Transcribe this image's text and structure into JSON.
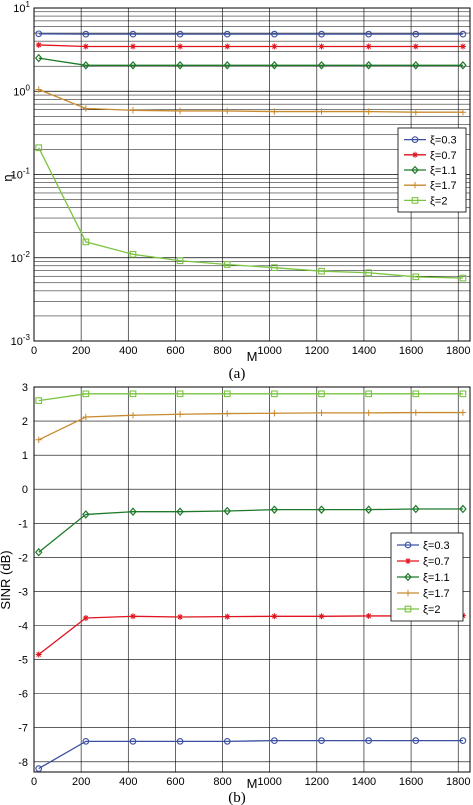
{
  "colors": {
    "xi_0_3": "#3a4fa0",
    "xi_0_7": "#e0141e",
    "xi_1_1": "#1e7a2a",
    "xi_1_7": "#c88a2e",
    "xi_2": "#7bc441"
  },
  "chart_data": [
    {
      "type": "line",
      "panel_caption": "(a)",
      "xlabel": "M",
      "ylabel": "η",
      "yscale": "log",
      "xlim": [
        0,
        1850
      ],
      "ylim": [
        0.001,
        10
      ],
      "xticks": [
        0,
        200,
        400,
        600,
        800,
        1000,
        1200,
        1400,
        1600,
        1800
      ],
      "yticks": [
        {
          "value": 0.001,
          "base": "10",
          "exp": "-3"
        },
        {
          "value": 0.01,
          "base": "10",
          "exp": "-2"
        },
        {
          "value": 0.1,
          "base": "10",
          "exp": "-1"
        },
        {
          "value": 1,
          "base": "10",
          "exp": "0"
        },
        {
          "value": 10,
          "base": "10",
          "exp": "1"
        }
      ],
      "grid": true,
      "legend_position": "right",
      "x": [
        20,
        220,
        420,
        620,
        820,
        1020,
        1220,
        1420,
        1620,
        1820
      ],
      "series": [
        {
          "name": "ξ=0.3",
          "color": "#3a4fa0",
          "marker": "circle",
          "values": [
            4.9,
            4.85,
            4.85,
            4.85,
            4.85,
            4.85,
            4.85,
            4.85,
            4.85,
            4.85
          ]
        },
        {
          "name": "ξ=0.7",
          "color": "#e0141e",
          "marker": "star",
          "values": [
            3.6,
            3.45,
            3.45,
            3.45,
            3.45,
            3.45,
            3.45,
            3.45,
            3.45,
            3.45
          ]
        },
        {
          "name": "ξ=1.1",
          "color": "#1e7a2a",
          "marker": "diamond",
          "values": [
            2.5,
            2.05,
            2.05,
            2.05,
            2.05,
            2.05,
            2.05,
            2.05,
            2.05,
            2.05
          ]
        },
        {
          "name": "ξ=1.7",
          "color": "#c88a2e",
          "marker": "plus",
          "values": [
            1.05,
            0.62,
            0.59,
            0.58,
            0.58,
            0.57,
            0.57,
            0.57,
            0.56,
            0.56
          ]
        },
        {
          "name": "ξ=2",
          "color": "#7bc441",
          "marker": "square",
          "values": [
            0.21,
            0.0155,
            0.011,
            0.0092,
            0.0083,
            0.0076,
            0.0069,
            0.0066,
            0.0059,
            0.0057
          ]
        }
      ]
    },
    {
      "type": "line",
      "panel_caption": "(b)",
      "xlabel": "M",
      "ylabel": "SINR (dB)",
      "yscale": "linear",
      "xlim": [
        0,
        1850
      ],
      "ylim": [
        -8.3,
        3
      ],
      "xticks": [
        0,
        200,
        400,
        600,
        800,
        1000,
        1200,
        1400,
        1600,
        1800
      ],
      "yticks": [
        3,
        2,
        1,
        0,
        -1,
        -2,
        -3,
        -4,
        -5,
        -6,
        -7,
        -8
      ],
      "grid": true,
      "legend_position": "right",
      "x": [
        20,
        220,
        420,
        620,
        820,
        1020,
        1220,
        1420,
        1620,
        1820
      ],
      "series": [
        {
          "name": "ξ=0.3",
          "color": "#3a4fa0",
          "marker": "circle",
          "values": [
            -8.2,
            -7.4,
            -7.4,
            -7.4,
            -7.4,
            -7.38,
            -7.38,
            -7.38,
            -7.38,
            -7.38
          ]
        },
        {
          "name": "ξ=0.7",
          "color": "#e0141e",
          "marker": "star",
          "values": [
            -4.85,
            -3.78,
            -3.73,
            -3.75,
            -3.74,
            -3.73,
            -3.73,
            -3.72,
            -3.72,
            -3.71
          ]
        },
        {
          "name": "ξ=1.1",
          "color": "#1e7a2a",
          "marker": "diamond",
          "values": [
            -1.85,
            -0.74,
            -0.66,
            -0.66,
            -0.64,
            -0.6,
            -0.6,
            -0.6,
            -0.58,
            -0.58
          ]
        },
        {
          "name": "ξ=1.7",
          "color": "#c88a2e",
          "marker": "plus",
          "values": [
            1.45,
            2.12,
            2.17,
            2.2,
            2.22,
            2.23,
            2.24,
            2.24,
            2.25,
            2.25
          ]
        },
        {
          "name": "ξ=2",
          "color": "#7bc441",
          "marker": "square",
          "values": [
            2.6,
            2.8,
            2.8,
            2.8,
            2.8,
            2.8,
            2.8,
            2.8,
            2.8,
            2.8
          ]
        }
      ]
    }
  ]
}
